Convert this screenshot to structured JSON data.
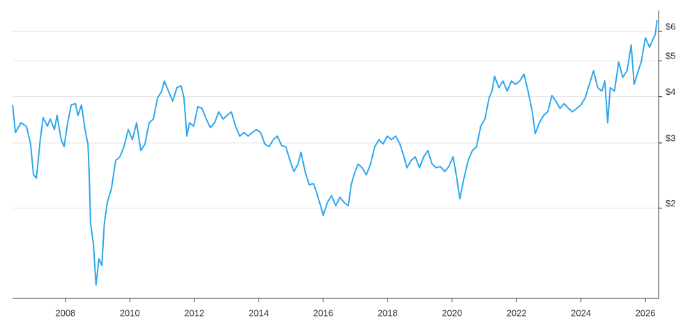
{
  "chart_data": {
    "type": "line",
    "log_scale": true,
    "grid": true,
    "color": "#2aa7ee",
    "xlim": [
      2006.36,
      2026.41
    ],
    "xticks": [
      2008,
      2010,
      2012,
      2014,
      2016,
      2018,
      2020,
      2022,
      2024,
      2026
    ],
    "ylim": [
      1.14,
      6.84
    ],
    "yticks": [
      {
        "value": 2,
        "label": "$2"
      },
      {
        "value": 3,
        "label": "$3"
      },
      {
        "value": 4,
        "label": "$4"
      },
      {
        "value": 5,
        "label": "$5"
      },
      {
        "value": 6,
        "label": "$6"
      }
    ],
    "x": [
      2006.36,
      2006.45,
      2006.62,
      2006.79,
      2006.92,
      2007.01,
      2007.1,
      2007.22,
      2007.31,
      2007.44,
      2007.53,
      2007.66,
      2007.74,
      2007.87,
      2007.96,
      2008.07,
      2008.18,
      2008.31,
      2008.39,
      2008.5,
      2008.61,
      2008.7,
      2008.74,
      2008.78,
      2008.87,
      2008.95,
      2009.04,
      2009.13,
      2009.21,
      2009.3,
      2009.43,
      2009.56,
      2009.69,
      2009.82,
      2009.95,
      2010.08,
      2010.21,
      2010.34,
      2010.47,
      2010.6,
      2010.73,
      2010.86,
      2010.99,
      2011.07,
      2011.2,
      2011.33,
      2011.46,
      2011.59,
      2011.68,
      2011.77,
      2011.85,
      2011.98,
      2012.11,
      2012.24,
      2012.37,
      2012.5,
      2012.63,
      2012.76,
      2012.89,
      2013.02,
      2013.15,
      2013.28,
      2013.41,
      2013.54,
      2013.67,
      2013.8,
      2013.93,
      2014.06,
      2014.19,
      2014.32,
      2014.45,
      2014.58,
      2014.71,
      2014.84,
      2014.97,
      2015.09,
      2015.22,
      2015.31,
      2015.44,
      2015.57,
      2015.7,
      2015.79,
      2015.92,
      2016.0,
      2016.13,
      2016.26,
      2016.39,
      2016.52,
      2016.65,
      2016.78,
      2016.87,
      2016.95,
      2017.08,
      2017.21,
      2017.34,
      2017.47,
      2017.6,
      2017.73,
      2017.86,
      2017.99,
      2018.12,
      2018.25,
      2018.38,
      2018.51,
      2018.6,
      2018.73,
      2018.86,
      2018.99,
      2019.12,
      2019.25,
      2019.38,
      2019.51,
      2019.64,
      2019.77,
      2019.9,
      2020.03,
      2020.13,
      2020.24,
      2020.37,
      2020.5,
      2020.63,
      2020.76,
      2020.89,
      2021.02,
      2021.15,
      2021.24,
      2021.32,
      2021.45,
      2021.58,
      2021.71,
      2021.84,
      2021.97,
      2022.1,
      2022.23,
      2022.36,
      2022.49,
      2022.58,
      2022.71,
      2022.84,
      2022.97,
      2023.1,
      2023.22,
      2023.35,
      2023.48,
      2023.61,
      2023.74,
      2023.87,
      2024.0,
      2024.13,
      2024.26,
      2024.39,
      2024.52,
      2024.65,
      2024.74,
      2024.83,
      2024.91,
      2025.04,
      2025.17,
      2025.3,
      2025.43,
      2025.56,
      2025.65,
      2025.78,
      2025.87,
      2026.0,
      2026.13,
      2026.22,
      2026.31,
      2026.36
    ],
    "values": [
      3.8,
      3.2,
      3.4,
      3.33,
      2.98,
      2.46,
      2.41,
      3.06,
      3.51,
      3.33,
      3.48,
      3.26,
      3.56,
      3.06,
      2.93,
      3.4,
      3.8,
      3.83,
      3.56,
      3.8,
      3.26,
      2.98,
      2.46,
      1.82,
      1.6,
      1.24,
      1.46,
      1.4,
      1.82,
      2.07,
      2.26,
      2.69,
      2.75,
      2.93,
      3.26,
      3.06,
      3.4,
      2.86,
      2.98,
      3.4,
      3.48,
      3.97,
      4.14,
      4.41,
      4.14,
      3.89,
      4.23,
      4.28,
      3.97,
      3.13,
      3.4,
      3.33,
      3.76,
      3.72,
      3.48,
      3.3,
      3.4,
      3.64,
      3.48,
      3.56,
      3.64,
      3.33,
      3.13,
      3.2,
      3.13,
      3.2,
      3.26,
      3.2,
      2.98,
      2.93,
      3.06,
      3.13,
      2.95,
      2.93,
      2.69,
      2.51,
      2.63,
      2.83,
      2.51,
      2.31,
      2.33,
      2.21,
      2.03,
      1.91,
      2.07,
      2.16,
      2.03,
      2.14,
      2.07,
      2.03,
      2.31,
      2.45,
      2.63,
      2.57,
      2.46,
      2.63,
      2.93,
      3.06,
      2.98,
      3.13,
      3.06,
      3.13,
      2.98,
      2.75,
      2.57,
      2.69,
      2.75,
      2.57,
      2.75,
      2.86,
      2.63,
      2.57,
      2.59,
      2.51,
      2.59,
      2.75,
      2.46,
      2.12,
      2.41,
      2.69,
      2.86,
      2.93,
      3.33,
      3.48,
      3.97,
      4.14,
      4.54,
      4.23,
      4.41,
      4.14,
      4.41,
      4.32,
      4.41,
      4.6,
      4.14,
      3.64,
      3.18,
      3.4,
      3.56,
      3.64,
      4.03,
      3.89,
      3.72,
      3.83,
      3.72,
      3.64,
      3.72,
      3.8,
      3.97,
      4.32,
      4.7,
      4.23,
      4.14,
      4.41,
      3.4,
      4.23,
      4.14,
      4.96,
      4.51,
      4.7,
      5.52,
      4.32,
      4.7,
      4.96,
      5.77,
      5.44,
      5.68,
      5.91,
      6.44
    ]
  }
}
